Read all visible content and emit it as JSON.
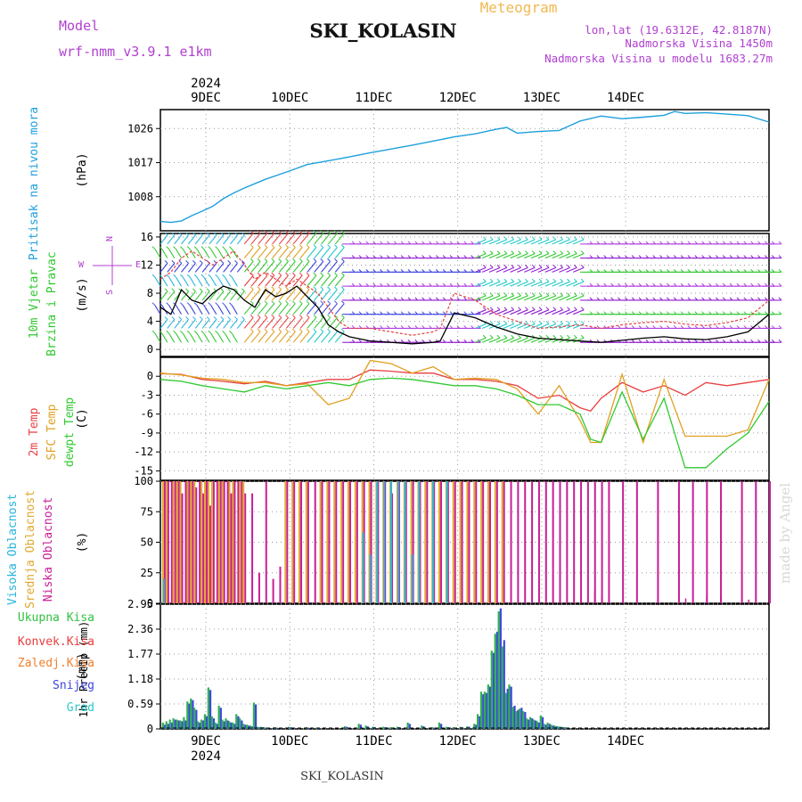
{
  "header": {
    "model_label": "Model",
    "model_name": "wrf-nmm_v3.9.1 e1km",
    "station": "SKI_KOLASIN",
    "meteogram": "Meteogram",
    "lonlat": "lon,lat (19.6312E, 42.8187N)",
    "elevation": "Nadmorska Visina 1450m",
    "model_elevation": "Nadmorska Visina u modelu 1683.27m",
    "footer_station": "SKI_KOLASIN",
    "watermark": "made by Angel"
  },
  "colors": {
    "pressure": "#1ea0dc",
    "t2m": "#e84040",
    "tsfc": "#e0a020",
    "dewpt": "#30c830",
    "high_cloud": "#28b4dc",
    "mid_cloud": "#e0a830",
    "low_cloud": "#c81e96",
    "precip_total": "#30b050",
    "precip_snow": "#3c46dc",
    "purple_text": "#b040d0"
  },
  "chart_data": [
    {
      "type": "line",
      "panel": "pressure",
      "ylabel_lines": [
        "Pritisak na nivou mora"
      ],
      "unit": "(hPa)",
      "ylim": [
        999,
        1031
      ],
      "yticks": [
        1008,
        1017,
        1026
      ],
      "day_labels": [
        "9DEC",
        "10DEC",
        "11DEC",
        "12DEC",
        "13DEC",
        "14DEC"
      ],
      "year_label": "2024",
      "x": [
        0,
        3,
        6,
        9,
        12,
        15,
        18,
        21,
        24,
        30,
        36,
        42,
        48,
        54,
        60,
        66,
        72,
        78,
        84,
        90,
        96,
        99,
        102,
        108,
        114,
        120,
        126,
        132,
        138,
        144,
        147,
        150,
        156,
        162,
        168,
        174
      ],
      "values": [
        1001.5,
        1001.2,
        1001.6,
        1003,
        1004.2,
        1005.5,
        1007.5,
        1009,
        1010.3,
        1012.6,
        1014.5,
        1016.5,
        1017.5,
        1018.5,
        1019.6,
        1020.6,
        1021.6,
        1022.7,
        1023.8,
        1024.6,
        1025.8,
        1026.3,
        1024.8,
        1025.2,
        1025.5,
        1028,
        1029.3,
        1028.6,
        1029,
        1029.5,
        1030.5,
        1030,
        1030.2,
        1029.8,
        1029.4,
        1027.7
      ],
      "grid": true
    },
    {
      "type": "line",
      "panel": "wind",
      "ylabel_lines": [
        "10m Vjetar",
        "Brzina i Pravac"
      ],
      "unit": "(m/s)",
      "ylim": [
        -1,
        16.5
      ],
      "yticks": [
        0,
        4,
        8,
        12,
        16
      ],
      "compass": {
        "n": "N",
        "w": "W",
        "e": "E",
        "s": "S"
      },
      "x": [
        0,
        3,
        6,
        9,
        12,
        15,
        18,
        21,
        24,
        27,
        30,
        33,
        36,
        39,
        42,
        45,
        48,
        51,
        54,
        60,
        66,
        72,
        78,
        80,
        84,
        90,
        96,
        102,
        108,
        114,
        120,
        126,
        132,
        138,
        144,
        150,
        156,
        162,
        168,
        174
      ],
      "series": [
        {
          "name": "speed",
          "values": [
            6,
            5,
            8.5,
            7,
            6.5,
            8,
            9,
            8.5,
            7,
            6,
            8.5,
            7.5,
            8,
            9,
            7.5,
            6,
            3.5,
            2.5,
            1.8,
            1.2,
            1.0,
            0.8,
            1.0,
            1.2,
            5.2,
            4.5,
            3.2,
            2.2,
            1.6,
            1.4,
            1.2,
            1.0,
            1.3,
            1.6,
            1.8,
            1.5,
            1.4,
            1.8,
            2.5,
            5.0
          ]
        },
        {
          "name": "gust",
          "values": [
            10,
            11,
            13,
            14,
            13,
            12,
            13,
            14,
            12,
            10,
            11,
            10,
            9,
            10,
            9,
            8,
            6,
            4,
            3,
            3,
            2.5,
            2,
            2.5,
            3,
            8,
            7,
            5,
            4,
            3,
            3.2,
            3.5,
            3,
            3.5,
            3.8,
            4,
            3.6,
            3.4,
            3.8,
            4.5,
            7
          ]
        }
      ],
      "barb_rows": [
        1,
        3,
        5,
        7,
        9,
        11,
        13,
        15
      ],
      "grid": true
    },
    {
      "type": "line",
      "panel": "temperature",
      "ylabel_lines": [
        "2m Temp",
        "SFC Temp",
        "dewpt Temp"
      ],
      "unit": "(C)",
      "ylim": [
        -16.5,
        3
      ],
      "yticks": [
        -15,
        -12,
        -9,
        -6,
        -3,
        0
      ],
      "x": [
        0,
        6,
        12,
        18,
        24,
        30,
        36,
        42,
        48,
        54,
        60,
        66,
        72,
        78,
        84,
        90,
        96,
        102,
        108,
        114,
        120,
        123,
        126,
        132,
        138,
        144,
        150,
        156,
        162,
        168,
        174
      ],
      "series": [
        {
          "name": "2m Temp",
          "values": [
            0.4,
            0.3,
            -0.5,
            -0.8,
            -1.2,
            -0.8,
            -1.5,
            -1.0,
            -0.5,
            -0.5,
            1.0,
            0.8,
            0.5,
            0.5,
            -0.5,
            -0.5,
            -0.8,
            -1.5,
            -3.5,
            -3.0,
            -5.0,
            -5.5,
            -3.5,
            -1.0,
            -2.5,
            -1.5,
            -3.0,
            -1.0,
            -1.5,
            -1.0,
            -0.5
          ]
        },
        {
          "name": "SFC Temp",
          "values": [
            0.5,
            0.2,
            -0.3,
            -0.5,
            -1.0,
            -1.0,
            -1.5,
            -1.2,
            -4.5,
            -3.5,
            2.5,
            2.0,
            0.5,
            1.5,
            -0.5,
            -0.3,
            -0.5,
            -2.0,
            -6.0,
            -1.5,
            -7.0,
            -10.5,
            -10.5,
            0.3,
            -10.5,
            -0.5,
            -9.5,
            -9.5,
            -9.5,
            -8.5,
            -0.5
          ]
        },
        {
          "name": "dewpt Temp",
          "values": [
            -0.5,
            -0.8,
            -1.5,
            -2.0,
            -2.5,
            -1.5,
            -2.0,
            -1.5,
            -1.0,
            -1.5,
            -0.5,
            -0.3,
            -0.5,
            -1.0,
            -1.5,
            -1.5,
            -2.0,
            -3.0,
            -4.5,
            -4.5,
            -6.0,
            -10.0,
            -10.5,
            -2.5,
            -10.0,
            -3.5,
            -14.5,
            -14.5,
            -11.5,
            -9.0,
            -4.0
          ]
        }
      ],
      "grid": true
    },
    {
      "type": "bar",
      "panel": "cloud",
      "ylabel_lines": [
        "Visoka Oblacnost",
        "Srednja Oblacnost",
        "Niska Oblacnost"
      ],
      "unit": "(%)",
      "ylim": [
        0,
        100
      ],
      "yticks": [
        0,
        25,
        50,
        75,
        100
      ],
      "x_bars": [
        1,
        2,
        3,
        4,
        5,
        6,
        7,
        8,
        9,
        10,
        11,
        12,
        13,
        14,
        15,
        16,
        17,
        18,
        19,
        20,
        21,
        22,
        23,
        24,
        26,
        28,
        30,
        32,
        34,
        36,
        38,
        40,
        42,
        44,
        46,
        48,
        50,
        52,
        54,
        56,
        58,
        60,
        62,
        64,
        66,
        68,
        70,
        72,
        74,
        76,
        78,
        80,
        82,
        84,
        86,
        88,
        90,
        92,
        94,
        96,
        98,
        100,
        102,
        104,
        106,
        108,
        110,
        112,
        114,
        116,
        118,
        120,
        122,
        124,
        126,
        128,
        132,
        136,
        142,
        148,
        152,
        156,
        160,
        166,
        170,
        174
      ],
      "series": [
        {
          "name": "Niska Oblacnost",
          "values": [
            100,
            100,
            100,
            100,
            100,
            90,
            100,
            100,
            100,
            95,
            100,
            90,
            100,
            80,
            100,
            100,
            100,
            100,
            100,
            90,
            100,
            100,
            100,
            90,
            90,
            25,
            100,
            20,
            30,
            100,
            100,
            100,
            100,
            100,
            100,
            100,
            100,
            100,
            100,
            100,
            100,
            100,
            100,
            100,
            90,
            100,
            100,
            100,
            100,
            100,
            100,
            100,
            100,
            100,
            100,
            100,
            100,
            100,
            100,
            100,
            100,
            100,
            100,
            100,
            100,
            100,
            100,
            100,
            100,
            100,
            100,
            100,
            100,
            100,
            100,
            100,
            100,
            100,
            100,
            100,
            100,
            100,
            100,
            100,
            100,
            100
          ]
        },
        {
          "name": "Srednja Oblacnost",
          "values": [
            100,
            100,
            0,
            100,
            100,
            100,
            0,
            100,
            100,
            100,
            0,
            100,
            100,
            100,
            100,
            0,
            100,
            100,
            0,
            100,
            100,
            0,
            100,
            100,
            0,
            0,
            0,
            0,
            0,
            100,
            100,
            100,
            100,
            0,
            100,
            100,
            100,
            100,
            100,
            100,
            100,
            100,
            100,
            100,
            100,
            100,
            100,
            100,
            100,
            100,
            100,
            100,
            100,
            100,
            100,
            100,
            100,
            100,
            100,
            100,
            100,
            0,
            0,
            0,
            0,
            0,
            0,
            0,
            0,
            0,
            0,
            0,
            0,
            0,
            0,
            0,
            0,
            0,
            0,
            0,
            0,
            0,
            0,
            0,
            0,
            0
          ]
        },
        {
          "name": "Visoka Oblacnost",
          "values": [
            20,
            0,
            0,
            0,
            0,
            0,
            0,
            0,
            0,
            0,
            0,
            0,
            0,
            0,
            0,
            0,
            0,
            0,
            0,
            0,
            0,
            0,
            0,
            0,
            0,
            0,
            0,
            0,
            0,
            0,
            0,
            0,
            0,
            0,
            0,
            0,
            0,
            0,
            0,
            0,
            58,
            40,
            100,
            100,
            100,
            100,
            100,
            40,
            100,
            0,
            100,
            0,
            100,
            0,
            0,
            0,
            0,
            0,
            0,
            0,
            0,
            0,
            0,
            0,
            0,
            0,
            0,
            0,
            0,
            0,
            0,
            0,
            0,
            0,
            0,
            0,
            0,
            0,
            0,
            0,
            0,
            0,
            0,
            0,
            0,
            0
          ]
        }
      ],
      "grid": true
    },
    {
      "type": "bar",
      "panel": "precip",
      "ylabel_lines": [
        "1hr Precip (mm)"
      ],
      "legend": [
        "Ukupna Kisa",
        "Konvek.Kisa",
        "Zaledj.Kisa",
        "Snijeg",
        "Grad"
      ],
      "legend_colors": [
        "#30c040",
        "#e83c3c",
        "#f08030",
        "#3c46dc",
        "#28c8c8"
      ],
      "unit": "(mm)",
      "ylim": [
        0,
        2.95
      ],
      "yticks": [
        0,
        0.59,
        1.18,
        1.77,
        2.36,
        2.95
      ],
      "day_labels": [
        "9DEC",
        "10DEC",
        "11DEC",
        "12DEC",
        "13DEC",
        "14DEC"
      ],
      "year_label": "2024",
      "x": [
        1,
        2,
        3,
        4,
        5,
        6,
        7,
        8,
        9,
        10,
        11,
        12,
        13,
        14,
        15,
        16,
        17,
        18,
        19,
        20,
        21,
        22,
        23,
        24,
        25,
        26,
        27,
        28,
        29,
        30,
        33,
        37,
        42,
        45,
        53,
        57,
        59,
        61,
        64,
        66,
        68,
        71,
        75,
        78,
        80,
        82,
        84,
        86,
        88,
        90,
        91,
        92,
        93,
        94,
        95,
        96,
        97,
        98,
        99,
        100,
        101,
        102,
        103,
        104,
        105,
        106,
        107,
        108,
        109,
        110,
        111,
        112,
        113,
        114,
        115,
        116
      ],
      "series": [
        {
          "name": "Ukupna Kisa",
          "values": [
            0.15,
            0.18,
            0.22,
            0.25,
            0.22,
            0.2,
            0.28,
            0.65,
            0.72,
            0.5,
            0.18,
            0.22,
            0.35,
            0.98,
            0.3,
            0.15,
            0.55,
            0.22,
            0.25,
            0.18,
            0.15,
            0.35,
            0.25,
            0.12,
            0.1,
            0.08,
            0.62,
            0.05,
            0.05,
            0.04,
            0.04,
            0.05,
            0.04,
            0.03,
            0.06,
            0.12,
            0.08,
            0.05,
            0.05,
            0.04,
            0.05,
            0.15,
            0.08,
            0.04,
            0.15,
            0.05,
            0.04,
            0.05,
            0.06,
            0.12,
            0.35,
            0.88,
            0.88,
            1.05,
            1.85,
            2.25,
            2.78,
            1.95,
            0.85,
            1.05,
            0.52,
            0.42,
            0.48,
            0.42,
            0.25,
            0.28,
            0.22,
            0.18,
            0.32,
            0.12,
            0.15,
            0.1,
            0.08,
            0.06,
            0.05,
            0.04
          ]
        },
        {
          "name": "Snijeg",
          "values": [
            0.1,
            0.12,
            0.15,
            0.22,
            0.2,
            0.18,
            0.2,
            0.6,
            0.68,
            0.45,
            0.15,
            0.2,
            0.3,
            0.92,
            0.25,
            0.12,
            0.5,
            0.18,
            0.2,
            0.15,
            0.12,
            0.3,
            0.2,
            0.1,
            0.08,
            0.06,
            0.58,
            0.04,
            0.04,
            0.03,
            0.03,
            0.04,
            0.03,
            0.02,
            0.05,
            0.1,
            0.06,
            0.04,
            0.04,
            0.03,
            0.04,
            0.12,
            0.06,
            0.03,
            0.12,
            0.04,
            0.03,
            0.04,
            0.05,
            0.1,
            0.3,
            0.82,
            0.85,
            1.0,
            1.8,
            2.3,
            2.85,
            2.1,
            0.95,
            1.0,
            0.55,
            0.45,
            0.5,
            0.4,
            0.22,
            0.25,
            0.2,
            0.15,
            0.28,
            0.1,
            0.12,
            0.08,
            0.06,
            0.05,
            0.04,
            0.03
          ]
        }
      ],
      "grid": true
    }
  ]
}
